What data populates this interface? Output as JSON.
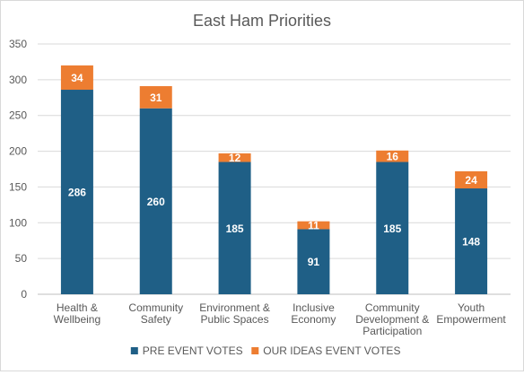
{
  "chart_data": {
    "type": "bar",
    "stacked": true,
    "title": "East Ham Priorities",
    "xlabel": "",
    "ylabel": "",
    "ylim": [
      0,
      350
    ],
    "yticks": [
      0,
      50,
      100,
      150,
      200,
      250,
      300,
      350
    ],
    "grid": true,
    "legend_position": "bottom",
    "categories": [
      [
        "Health &",
        "Wellbeing"
      ],
      [
        "Community",
        "Safety"
      ],
      [
        "Environment &",
        "Public Spaces"
      ],
      [
        "Inclusive",
        "Economy"
      ],
      [
        "Community",
        "Development &",
        "Participation"
      ],
      [
        "Youth",
        "Empowerment"
      ]
    ],
    "series": [
      {
        "name": "PRE EVENT VOTES",
        "color": "#1f5f86",
        "values": [
          286,
          260,
          185,
          91,
          185,
          148
        ]
      },
      {
        "name": "OUR IDEAS EVENT VOTES",
        "color": "#ed7d31",
        "values": [
          34,
          31,
          12,
          11,
          16,
          24
        ]
      }
    ]
  }
}
